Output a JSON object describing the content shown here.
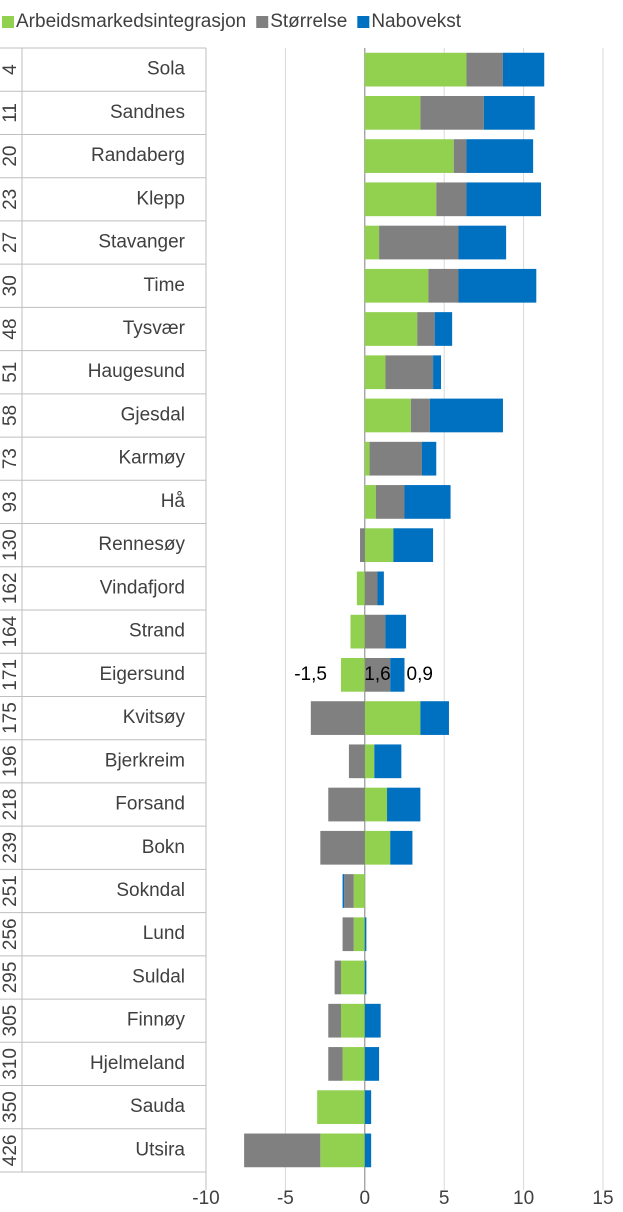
{
  "chart_data": {
    "type": "bar",
    "orientation": "horizontal",
    "stacked": true,
    "ranks": [
      4,
      11,
      20,
      23,
      27,
      30,
      48,
      51,
      58,
      73,
      93,
      130,
      162,
      164,
      171,
      175,
      196,
      218,
      239,
      251,
      256,
      295,
      305,
      310,
      350,
      426
    ],
    "categories": [
      "Sola",
      "Sandnes",
      "Randaberg",
      "Klepp",
      "Stavanger",
      "Time",
      "Tysvær",
      "Haugesund",
      "Gjesdal",
      "Karmøy",
      "Hå",
      "Rennesøy",
      "Vindafjord",
      "Strand",
      "Eigersund",
      "Kvitsøy",
      "Bjerkreim",
      "Forsand",
      "Bokn",
      "Sokndal",
      "Lund",
      "Suldal",
      "Finnøy",
      "Hjelmeland",
      "Sauda",
      "Utsira"
    ],
    "series": [
      {
        "name": "Arbeidsmarkedsintegrasjon",
        "color": "#92d050",
        "values": [
          6.4,
          3.5,
          5.6,
          4.5,
          0.9,
          4.0,
          3.3,
          1.3,
          2.9,
          0.3,
          0.7,
          1.8,
          -0.5,
          -0.9,
          -1.5,
          3.5,
          0.6,
          1.4,
          1.6,
          -0.7,
          -0.7,
          -1.5,
          -1.5,
          -1.4,
          -3.0,
          -2.8
        ],
        "value_labels": [
          null,
          null,
          null,
          null,
          null,
          null,
          null,
          null,
          null,
          null,
          null,
          null,
          null,
          null,
          "-1,5",
          null,
          null,
          null,
          null,
          null,
          null,
          null,
          null,
          null,
          null,
          null
        ]
      },
      {
        "name": "Størrelse",
        "color": "#808080",
        "values": [
          2.3,
          4.0,
          0.8,
          1.9,
          5.0,
          1.9,
          1.1,
          3.0,
          1.2,
          3.3,
          1.8,
          -0.3,
          0.8,
          1.3,
          1.6,
          -3.4,
          -1.0,
          -2.3,
          -2.8,
          -0.6,
          -0.7,
          -0.4,
          -0.8,
          -0.9,
          0,
          -4.8
        ],
        "value_labels": [
          null,
          null,
          null,
          null,
          null,
          null,
          null,
          null,
          null,
          null,
          null,
          null,
          null,
          null,
          "1,6",
          null,
          null,
          null,
          null,
          null,
          null,
          null,
          null,
          null,
          null,
          null
        ]
      },
      {
        "name": "Nabovekst",
        "color": "#0070c0",
        "values": [
          2.6,
          3.2,
          4.2,
          4.7,
          3.0,
          4.9,
          1.1,
          0.5,
          4.6,
          0.9,
          2.9,
          2.5,
          0.4,
          1.3,
          0.9,
          1.8,
          1.7,
          2.1,
          1.4,
          -0.1,
          0.1,
          0.1,
          1.0,
          0.9,
          0.4,
          0.4
        ],
        "value_labels": [
          null,
          null,
          null,
          null,
          null,
          null,
          null,
          null,
          null,
          null,
          null,
          null,
          null,
          null,
          "0,9",
          null,
          null,
          null,
          null,
          null,
          null,
          null,
          null,
          null,
          null,
          null
        ]
      }
    ],
    "xlim": [
      -10,
      15
    ],
    "xticks": [
      -10,
      -5,
      0,
      5,
      10,
      15
    ],
    "grid": true,
    "legend": "top"
  }
}
